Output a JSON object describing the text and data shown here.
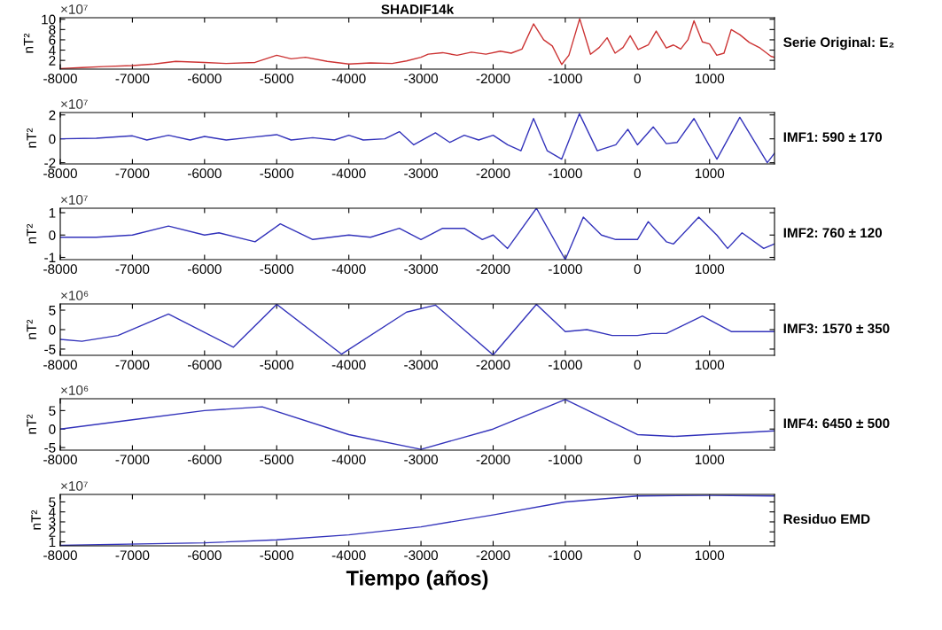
{
  "chart_data": [
    {
      "type": "line",
      "title": "SHADIF14k",
      "ylabel": "nT²",
      "annotations": [
        "×10⁷"
      ],
      "xlim": [
        -8000,
        1900
      ],
      "xticks": [
        -8000,
        -7000,
        -6000,
        -5000,
        -4000,
        -3000,
        -2000,
        -1000,
        0,
        1000
      ],
      "ylim": [
        0.3,
        10.3
      ],
      "yticks": [
        2,
        4,
        6,
        8,
        10
      ],
      "series": [
        {
          "name": "Serie Original: E₂",
          "color": "#cc3333",
          "x": [
            -8000,
            -7700,
            -7400,
            -7000,
            -6700,
            -6400,
            -6000,
            -5700,
            -5300,
            -5000,
            -4800,
            -4600,
            -4300,
            -4000,
            -3700,
            -3400,
            -3200,
            -3000,
            -2900,
            -2700,
            -2500,
            -2300,
            -2100,
            -1900,
            -1750,
            -1600,
            -1440,
            -1300,
            -1180,
            -1050,
            -950,
            -800,
            -650,
            -530,
            -420,
            -310,
            -200,
            -100,
            10,
            150,
            260,
            400,
            500,
            600,
            700,
            784,
            900,
            1000,
            1100,
            1200,
            1300,
            1419,
            1550,
            1700,
            1850,
            1900
          ],
          "values": [
            0.4,
            0.6,
            0.8,
            1.0,
            1.3,
            1.8,
            1.6,
            1.4,
            1.6,
            3.0,
            2.3,
            2.6,
            1.8,
            1.3,
            1.5,
            1.4,
            1.9,
            2.6,
            3.2,
            3.5,
            3.0,
            3.6,
            3.2,
            3.8,
            3.4,
            4.2,
            9.1,
            6.0,
            4.8,
            1.2,
            3.0,
            10.1,
            3.2,
            4.5,
            6.4,
            3.4,
            4.5,
            6.8,
            4.1,
            5.0,
            7.7,
            4.4,
            5.0,
            4.2,
            6.0,
            9.7,
            5.6,
            5.2,
            3.0,
            3.4,
            8.0,
            7.0,
            5.5,
            4.4,
            2.8,
            2.6
          ]
        }
      ]
    },
    {
      "type": "line",
      "ylabel": "nT²",
      "annotations": [
        "×10⁷"
      ],
      "xlim": [
        -8000,
        1900
      ],
      "xticks": [
        -8000,
        -7000,
        -6000,
        -5000,
        -4000,
        -3000,
        -2000,
        -1000,
        0,
        1000
      ],
      "ylim": [
        -2.1,
        2.2
      ],
      "yticks": [
        -2,
        0,
        2
      ],
      "series": [
        {
          "name": "IMF1: 590 ± 170",
          "color": "#3333bb",
          "x": [
            -8000,
            -7500,
            -7000,
            -6800,
            -6500,
            -6200,
            -6000,
            -5700,
            -5400,
            -5000,
            -4800,
            -4500,
            -4200,
            -4000,
            -3800,
            -3500,
            -3300,
            -3100,
            -2800,
            -2600,
            -2400,
            -2200,
            -2000,
            -1800,
            -1615,
            -1440,
            -1250,
            -1050,
            -804,
            -557,
            -300,
            -133,
            0,
            219,
            400,
            550,
            784,
            1102,
            1419,
            1800,
            1900
          ],
          "values": [
            0.0,
            0.05,
            0.25,
            -0.1,
            0.3,
            -0.1,
            0.2,
            -0.1,
            0.1,
            0.35,
            -0.1,
            0.1,
            -0.1,
            0.3,
            -0.1,
            0.0,
            0.6,
            -0.5,
            0.5,
            -0.3,
            0.3,
            -0.1,
            0.3,
            -0.5,
            -1.0,
            1.7,
            -1.0,
            -1.7,
            2.1,
            -1.0,
            -0.5,
            0.8,
            -0.5,
            1.0,
            -0.4,
            -0.3,
            1.7,
            -1.7,
            1.8,
            -2.0,
            -1.2
          ]
        }
      ]
    },
    {
      "type": "line",
      "ylabel": "nT²",
      "annotations": [
        "×10⁷"
      ],
      "xlim": [
        -8000,
        1900
      ],
      "xticks": [
        -8000,
        -7000,
        -6000,
        -5000,
        -4000,
        -3000,
        -2000,
        -1000,
        0,
        1000
      ],
      "ylim": [
        -1.1,
        1.2
      ],
      "yticks": [
        -1,
        0,
        1
      ],
      "series": [
        {
          "name": "IMF2: 760 ± 120",
          "color": "#3333bb",
          "x": [
            -8000,
            -7500,
            -7000,
            -6500,
            -6000,
            -5800,
            -5300,
            -4950,
            -4500,
            -4000,
            -3700,
            -3300,
            -3000,
            -2700,
            -2400,
            -2150,
            -2000,
            -1800,
            -1400,
            -1000,
            -750,
            -500,
            -300,
            0,
            150,
            400,
            500,
            850,
            1100,
            1250,
            1450,
            1750,
            1900
          ],
          "values": [
            -0.1,
            -0.1,
            0.0,
            0.4,
            0.0,
            0.1,
            -0.3,
            0.5,
            -0.2,
            0.0,
            -0.1,
            0.3,
            -0.2,
            0.3,
            0.3,
            -0.2,
            0.0,
            -0.6,
            1.2,
            -1.1,
            0.8,
            0.0,
            -0.2,
            -0.2,
            0.6,
            -0.3,
            -0.4,
            0.8,
            0.0,
            -0.6,
            0.1,
            -0.6,
            -0.4
          ]
        }
      ]
    },
    {
      "type": "line",
      "ylabel": "nT²",
      "annotations": [
        "×10⁶"
      ],
      "xlim": [
        -8000,
        1900
      ],
      "xticks": [
        -8000,
        -7000,
        -6000,
        -5000,
        -4000,
        -3000,
        -2000,
        -1000,
        0,
        1000
      ],
      "ylim": [
        -6.6,
        6.6
      ],
      "yticks": [
        -5,
        0,
        5
      ],
      "series": [
        {
          "name": "IMF3: 1570 ± 350",
          "color": "#3333bb",
          "x": [
            -8000,
            -7700,
            -7200,
            -6500,
            -5600,
            -5000,
            -4100,
            -3200,
            -2800,
            -2000,
            -1400,
            -1000,
            -700,
            -350,
            0,
            200,
            400,
            900,
            1300,
            1900
          ],
          "values": [
            -2.5,
            -3.0,
            -1.5,
            4.0,
            -4.5,
            6.5,
            -6.3,
            4.5,
            6.3,
            -6.5,
            6.5,
            -0.5,
            0.0,
            -1.5,
            -1.5,
            -1.0,
            -1.0,
            3.5,
            -0.5,
            -0.5
          ]
        }
      ]
    },
    {
      "type": "line",
      "ylabel": "nT²",
      "annotations": [
        "×10⁶"
      ],
      "xlim": [
        -8000,
        1900
      ],
      "xticks": [
        -8000,
        -7000,
        -6000,
        -5000,
        -4000,
        -3000,
        -2000,
        -1000,
        0,
        1000
      ],
      "ylim": [
        -5.7,
        8.2
      ],
      "yticks": [
        -5,
        0,
        5
      ],
      "series": [
        {
          "name": "IMF4: 6450 ± 500",
          "color": "#3333bb",
          "x": [
            -8000,
            -7000,
            -6000,
            -5200,
            -4000,
            -3000,
            -2000,
            -1000,
            0,
            500,
            1900
          ],
          "values": [
            0.0,
            2.5,
            5.0,
            6.0,
            -1.5,
            -5.5,
            0.0,
            8.0,
            -1.5,
            -2.0,
            -0.5
          ]
        }
      ]
    },
    {
      "type": "line",
      "ylabel": "nT²",
      "xlabel": "Tiempo (años)",
      "annotations": [
        "×10⁷"
      ],
      "xlim": [
        -8000,
        1900
      ],
      "xticks": [
        -8000,
        -7000,
        -6000,
        -5000,
        -4000,
        -3000,
        -2000,
        -1000,
        0,
        1000
      ],
      "ylim": [
        0.6,
        5.75
      ],
      "yticks": [
        1,
        2,
        3,
        4,
        5
      ],
      "series": [
        {
          "name": "Residuo EMD",
          "color": "#3333bb",
          "x": [
            -8000,
            -6000,
            -5000,
            -4000,
            -3000,
            -2000,
            -1000,
            0,
            1000,
            1900
          ],
          "values": [
            0.65,
            0.9,
            1.2,
            1.7,
            2.5,
            3.7,
            5.0,
            5.6,
            5.65,
            5.6
          ]
        }
      ]
    }
  ]
}
